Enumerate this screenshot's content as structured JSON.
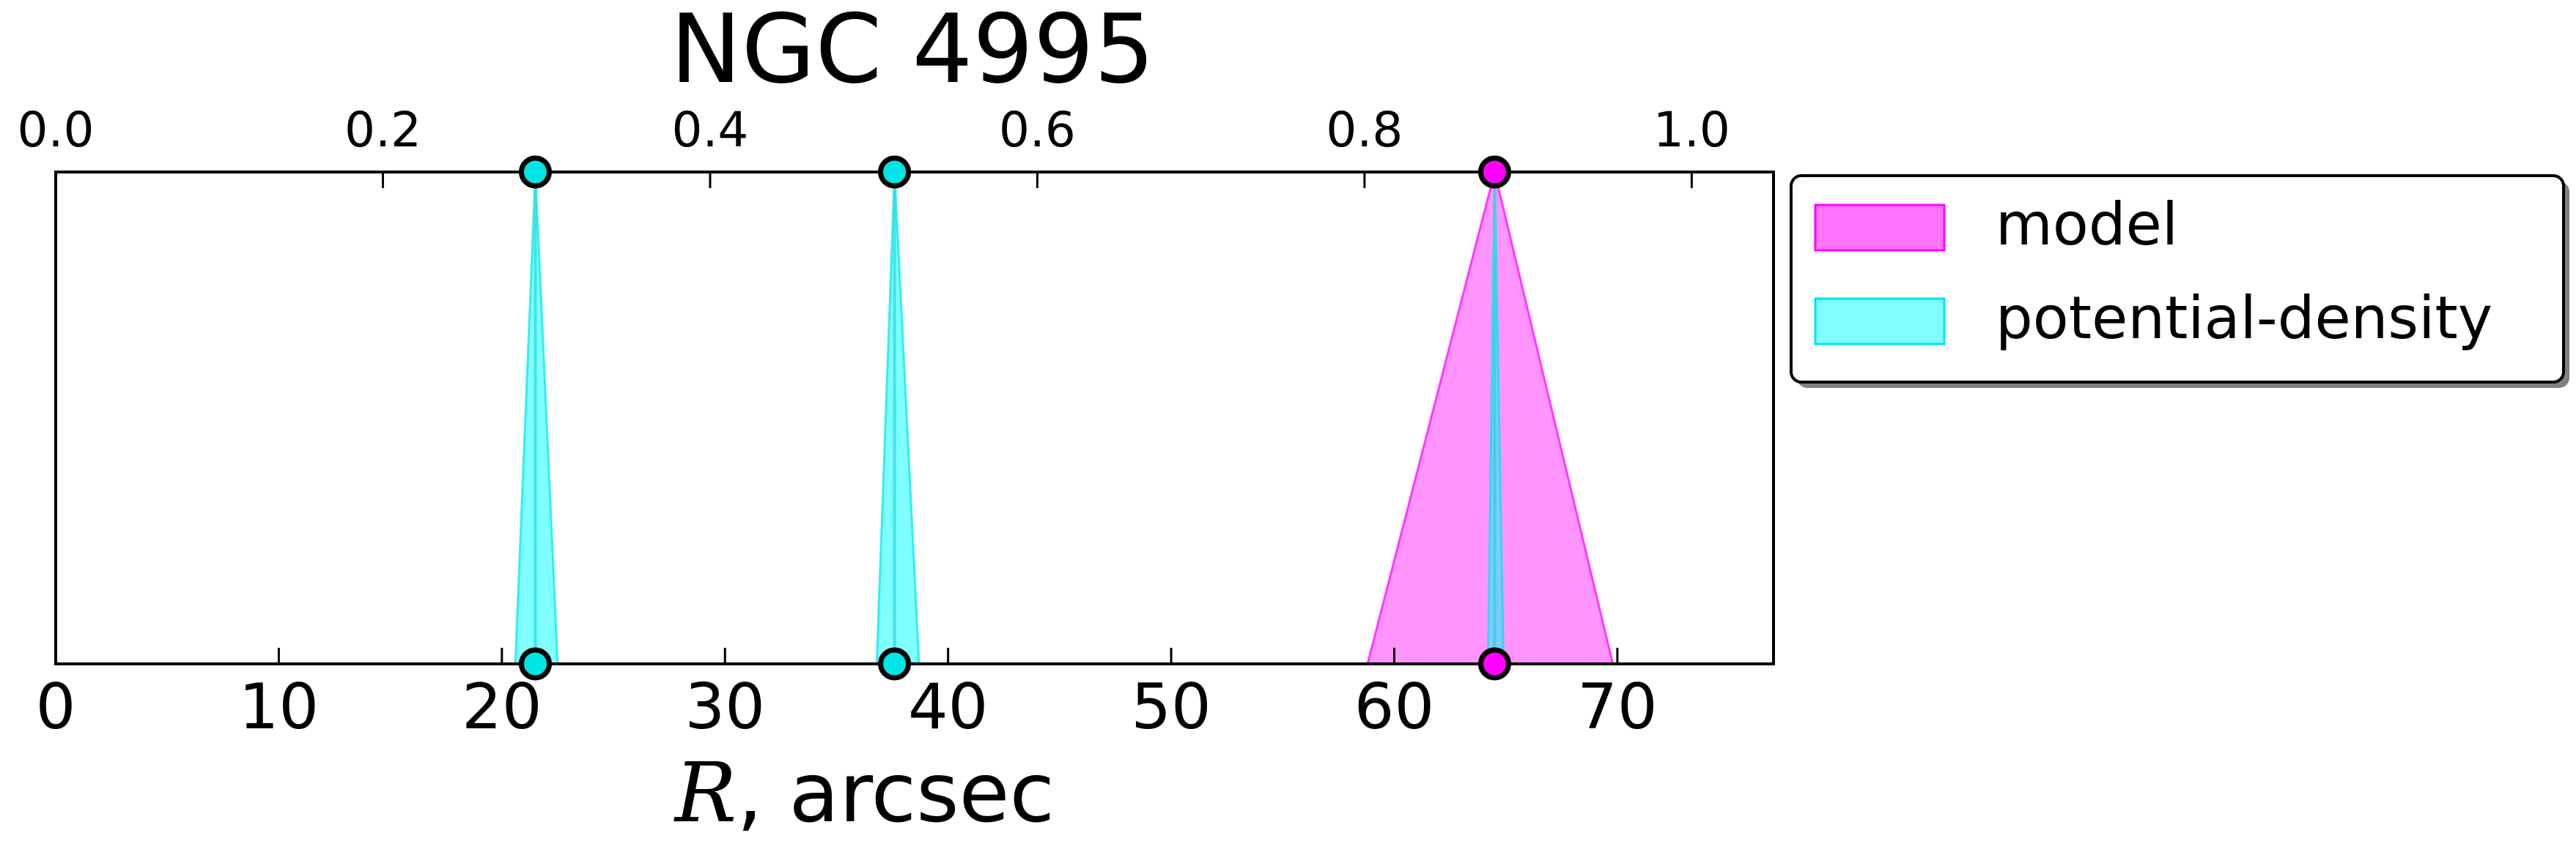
{
  "chart_data": {
    "type": "area",
    "title": "NGC 4995",
    "xlabel_italic": "R",
    "xlabel_rest": ", arcsec",
    "x_bottom": {
      "lim": [
        0,
        77
      ],
      "ticks": [
        0,
        10,
        20,
        30,
        40,
        50,
        60,
        70
      ],
      "tick_labels": [
        "0",
        "10",
        "20",
        "30",
        "40",
        "50",
        "60",
        "70"
      ]
    },
    "x_top": {
      "lim": [
        0,
        1.05
      ],
      "ticks": [
        0.0,
        0.2,
        0.4,
        0.6,
        0.8,
        1.0
      ],
      "tick_labels": [
        "0.0",
        "0.2",
        "0.4",
        "0.6",
        "0.8",
        "1.0"
      ]
    },
    "ylim": [
      0,
      1
    ],
    "grid": false,
    "legend_position": "outside-right-top",
    "series": [
      {
        "name": "model",
        "color": "#ff00ff",
        "bands": [
          {
            "center": 64.5,
            "low": 58.8,
            "high": 69.8
          }
        ]
      },
      {
        "name": "potential-density",
        "color": "#00e5e5",
        "bands": [
          {
            "center": 21.5,
            "low": 20.6,
            "high": 22.5
          },
          {
            "center": 37.6,
            "low": 36.8,
            "high": 38.7
          },
          {
            "center": 64.5,
            "low": 64.2,
            "high": 64.9
          }
        ]
      }
    ],
    "markers": [
      {
        "x": 21.5,
        "color": "#00e5e5"
      },
      {
        "x": 37.6,
        "color": "#00e5e5"
      },
      {
        "x": 64.5,
        "color": "#ff00ff"
      }
    ]
  }
}
